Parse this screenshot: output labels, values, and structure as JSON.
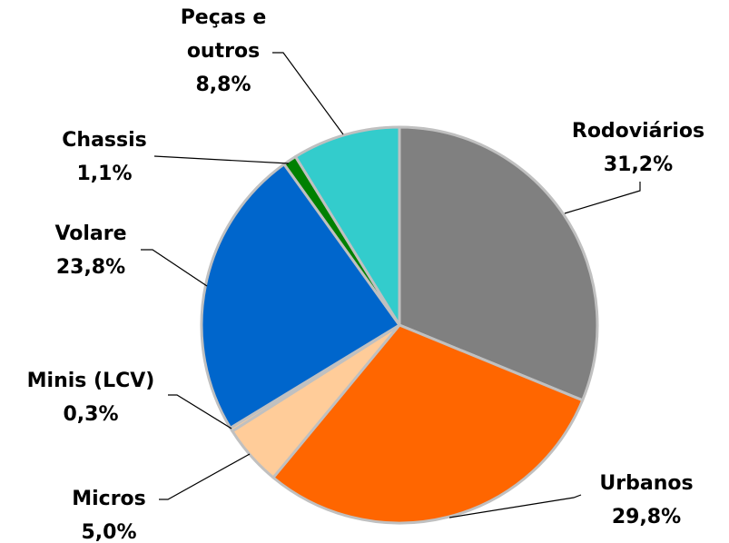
{
  "chart_data": {
    "type": "pie",
    "categories": [
      "Rodoviários",
      "Urbanos",
      "Micros",
      "Minis (LCV)",
      "Volare",
      "Chassis",
      "Peças e outros"
    ],
    "values": [
      31.2,
      29.8,
      5.0,
      0.3,
      23.8,
      1.1,
      8.8
    ],
    "value_labels": [
      "31,2%",
      "29,8%",
      "5,0%",
      "0,3%",
      "23,8%",
      "1,1%",
      "8,8%"
    ],
    "colors": [
      "#808080",
      "#ff6600",
      "#ffcc99",
      "#ffcc99",
      "#0066cc",
      "#008000",
      "#33cccc"
    ]
  }
}
